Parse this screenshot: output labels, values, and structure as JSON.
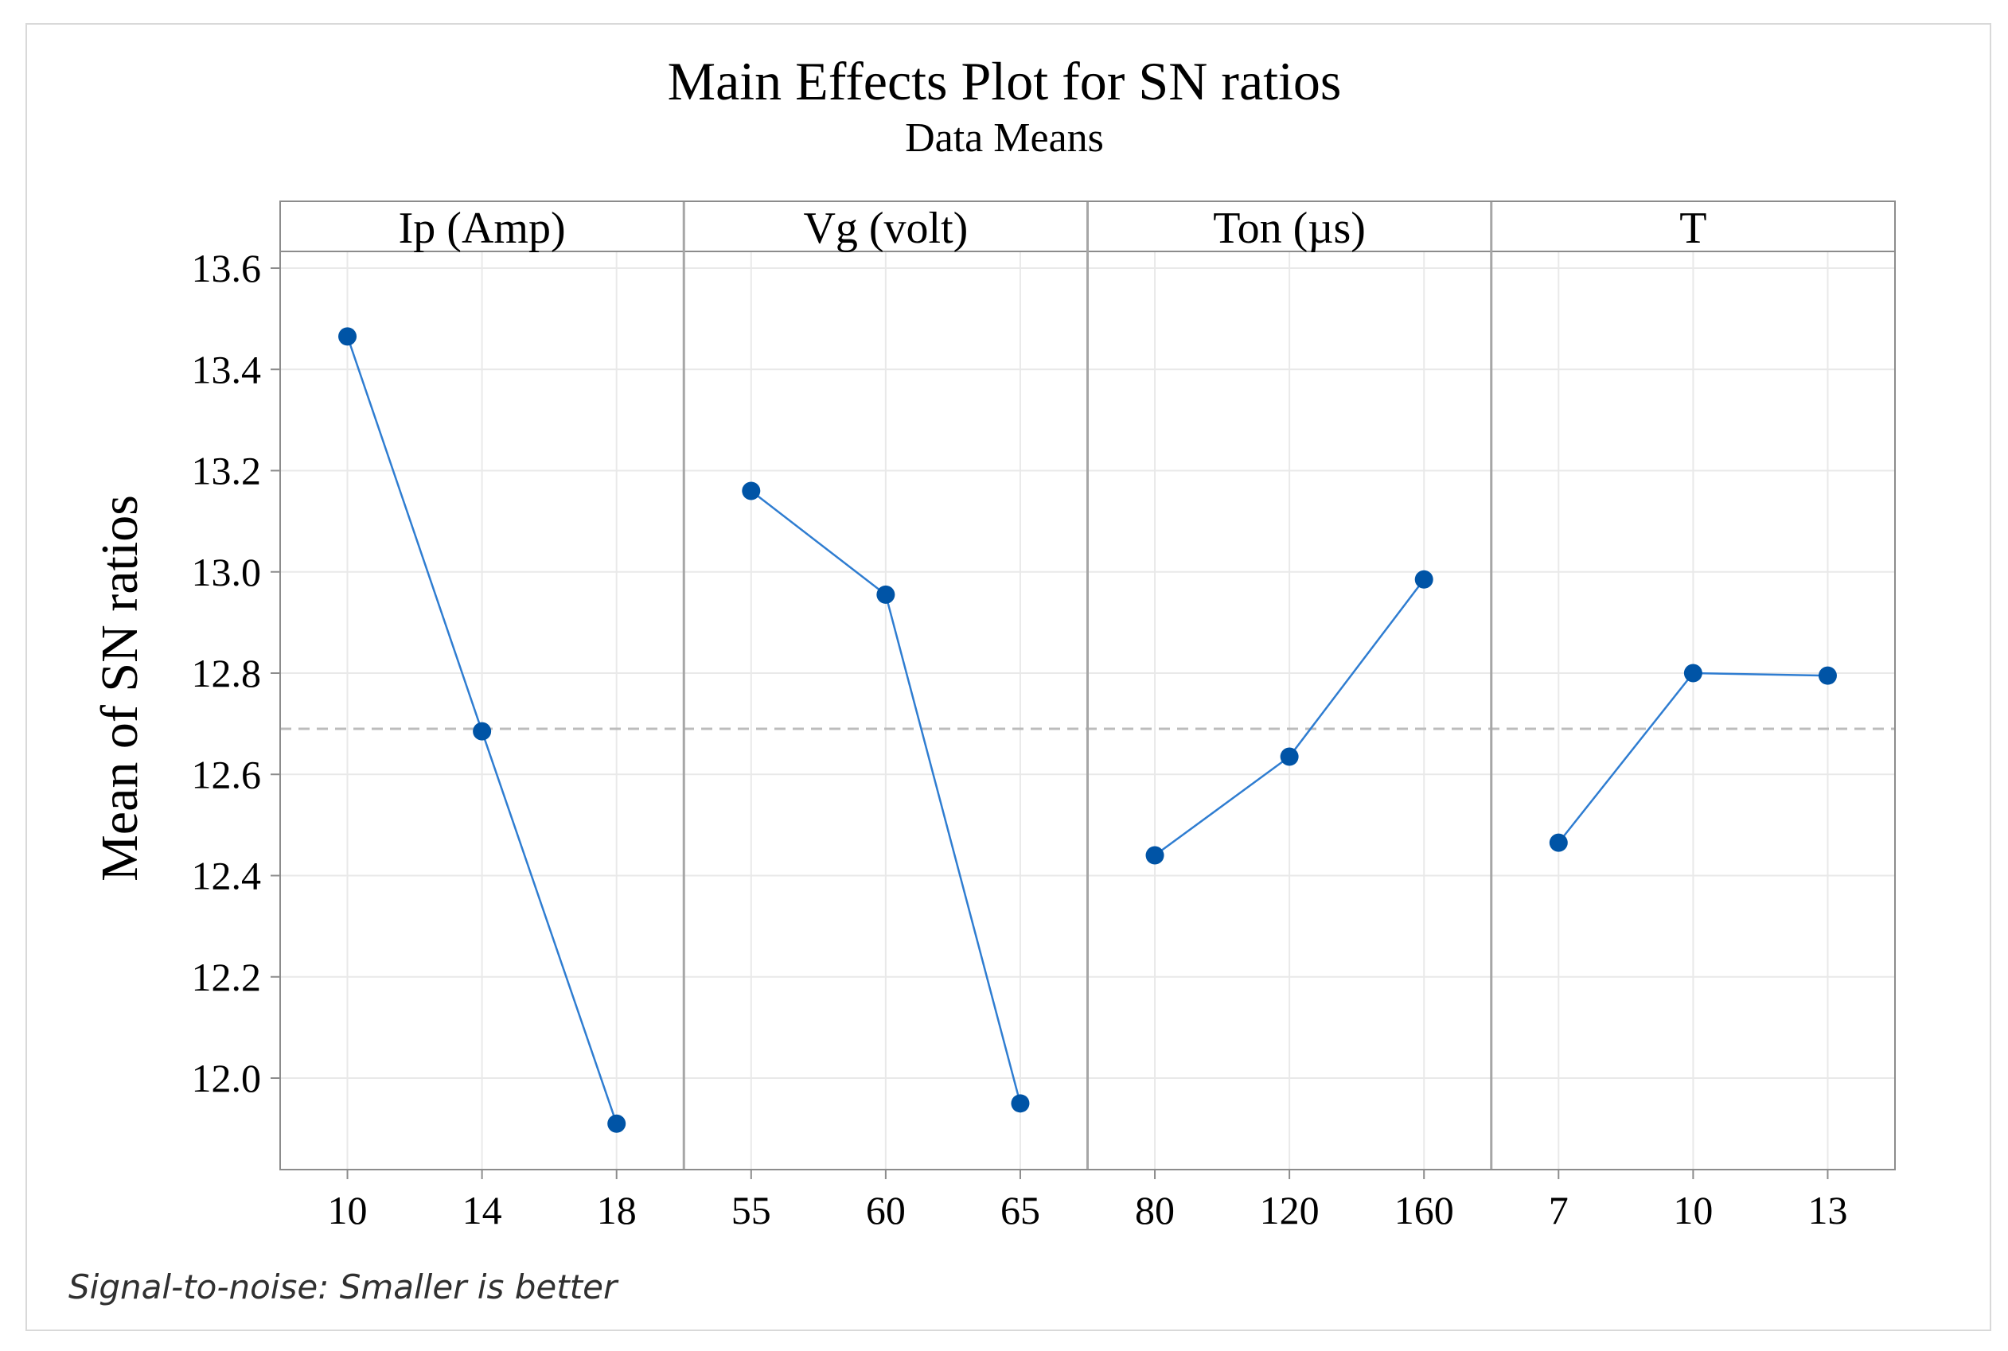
{
  "chart_data": {
    "type": "line",
    "title": "Main Effects Plot for SN ratios",
    "subtitle": "Data Means",
    "ylabel": "Mean of SN ratios",
    "ylim": [
      11.825,
      13.635
    ],
    "yticks": [
      12.0,
      12.2,
      12.4,
      12.6,
      12.8,
      13.0,
      13.2,
      13.4,
      13.6
    ],
    "reference_line": 12.69,
    "grid": true,
    "series_color": "#0054A6",
    "line_color": "#2F7DD1",
    "panels": [
      {
        "name": "Ip (Amp)",
        "x": [
          "10",
          "14",
          "18"
        ],
        "values": [
          13.465,
          12.685,
          11.91
        ]
      },
      {
        "name": "Vg (volt)",
        "x": [
          "55",
          "60",
          "65"
        ],
        "values": [
          13.16,
          12.955,
          11.95
        ]
      },
      {
        "name": "Ton (µs)",
        "x": [
          "80",
          "120",
          "160"
        ],
        "values": [
          12.44,
          12.635,
          12.985
        ]
      },
      {
        "name": "T",
        "x": [
          "7",
          "10",
          "13"
        ],
        "values": [
          12.465,
          12.8,
          12.795
        ]
      }
    ],
    "footnote": "Signal-to-noise: Smaller is better"
  }
}
